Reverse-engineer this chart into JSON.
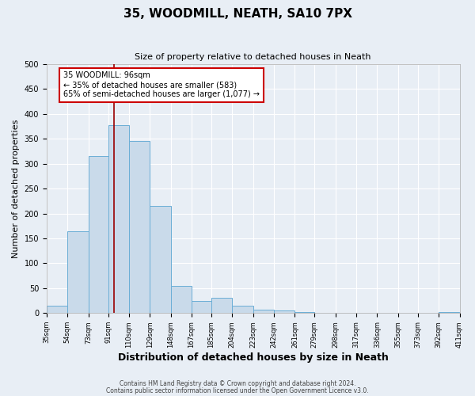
{
  "title": "35, WOODMILL, NEATH, SA10 7PX",
  "subtitle": "Size of property relative to detached houses in Neath",
  "xlabel": "Distribution of detached houses by size in Neath",
  "ylabel": "Number of detached properties",
  "bar_color": "#c9daea",
  "bar_edge_color": "#6baed6",
  "bg_color": "#e8eef5",
  "grid_color": "#ffffff",
  "property_line_x": 96,
  "property_line_color": "#990000",
  "annotation_line1": "35 WOODMILL: 96sqm",
  "annotation_line2": "← 35% of detached houses are smaller (583)",
  "annotation_line3": "65% of semi-detached houses are larger (1,077) →",
  "annotation_box_color": "#ffffff",
  "annotation_box_edge": "#cc0000",
  "footnote1": "Contains HM Land Registry data © Crown copyright and database right 2024.",
  "footnote2": "Contains public sector information licensed under the Open Government Licence v3.0.",
  "ylim": [
    0,
    500
  ],
  "bin_edges": [
    35,
    54,
    73,
    91,
    110,
    129,
    148,
    167,
    185,
    204,
    223,
    242,
    261,
    279,
    298,
    317,
    336,
    355,
    373,
    392,
    411
  ],
  "bin_heights": [
    15,
    165,
    315,
    378,
    345,
    215,
    55,
    25,
    30,
    15,
    7,
    5,
    2,
    1,
    0,
    0,
    0,
    0,
    0,
    2
  ],
  "yticks": [
    0,
    50,
    100,
    150,
    200,
    250,
    300,
    350,
    400,
    450,
    500
  ],
  "title_fontsize": 11,
  "subtitle_fontsize": 8,
  "ylabel_fontsize": 8,
  "xlabel_fontsize": 9,
  "xtick_fontsize": 6,
  "ytick_fontsize": 7,
  "footnote_fontsize": 5.5
}
